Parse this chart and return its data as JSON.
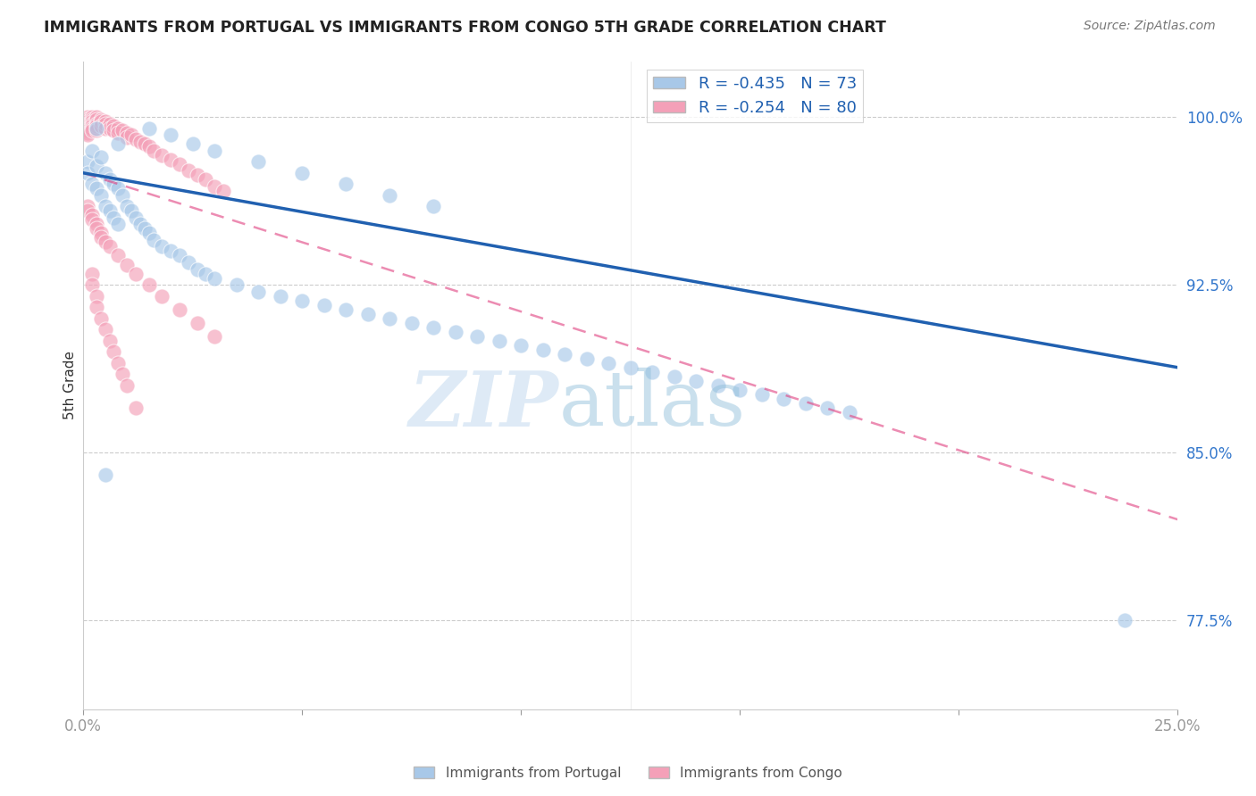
{
  "title": "IMMIGRANTS FROM PORTUGAL VS IMMIGRANTS FROM CONGO 5TH GRADE CORRELATION CHART",
  "source": "Source: ZipAtlas.com",
  "ylabel": "5th Grade",
  "legend_blue_label": "R = -0.435   N = 73",
  "legend_pink_label": "R = -0.254   N = 80",
  "legend_bottom_blue": "Immigrants from Portugal",
  "legend_bottom_pink": "Immigrants from Congo",
  "blue_color": "#a8c8e8",
  "pink_color": "#f4a0b8",
  "blue_line_color": "#2060b0",
  "pink_line_color": "#e04080",
  "xlim": [
    0.0,
    0.25
  ],
  "ylim": [
    0.735,
    1.025
  ],
  "yticks": [
    0.775,
    0.85,
    0.925,
    1.0
  ],
  "ytick_labels": [
    "77.5%",
    "85.0%",
    "92.5%",
    "100.0%"
  ],
  "xticks": [
    0.0,
    0.05,
    0.1,
    0.15,
    0.2,
    0.25
  ],
  "xtick_labels": [
    "0.0%",
    "",
    "",
    "",
    "",
    "25.0%"
  ],
  "blue_line_x0": 0.0,
  "blue_line_y0": 0.975,
  "blue_line_x1": 0.25,
  "blue_line_y1": 0.888,
  "pink_line_x0": 0.0,
  "pink_line_y0": 0.975,
  "pink_line_x1": 0.25,
  "pink_line_y1": 0.82,
  "portugal_x": [
    0.001,
    0.001,
    0.002,
    0.002,
    0.003,
    0.003,
    0.004,
    0.004,
    0.005,
    0.005,
    0.006,
    0.006,
    0.007,
    0.007,
    0.008,
    0.008,
    0.009,
    0.01,
    0.011,
    0.012,
    0.013,
    0.014,
    0.015,
    0.016,
    0.018,
    0.02,
    0.022,
    0.024,
    0.026,
    0.028,
    0.03,
    0.035,
    0.04,
    0.045,
    0.05,
    0.055,
    0.06,
    0.065,
    0.07,
    0.075,
    0.08,
    0.085,
    0.09,
    0.095,
    0.1,
    0.105,
    0.11,
    0.115,
    0.12,
    0.125,
    0.13,
    0.135,
    0.14,
    0.145,
    0.15,
    0.155,
    0.16,
    0.165,
    0.17,
    0.175,
    0.003,
    0.008,
    0.015,
    0.02,
    0.025,
    0.03,
    0.04,
    0.05,
    0.06,
    0.07,
    0.08,
    0.238,
    0.005
  ],
  "portugal_y": [
    0.98,
    0.975,
    0.985,
    0.97,
    0.978,
    0.968,
    0.982,
    0.965,
    0.975,
    0.96,
    0.972,
    0.958,
    0.97,
    0.955,
    0.968,
    0.952,
    0.965,
    0.96,
    0.958,
    0.955,
    0.952,
    0.95,
    0.948,
    0.945,
    0.942,
    0.94,
    0.938,
    0.935,
    0.932,
    0.93,
    0.928,
    0.925,
    0.922,
    0.92,
    0.918,
    0.916,
    0.914,
    0.912,
    0.91,
    0.908,
    0.906,
    0.904,
    0.902,
    0.9,
    0.898,
    0.896,
    0.894,
    0.892,
    0.89,
    0.888,
    0.886,
    0.884,
    0.882,
    0.88,
    0.878,
    0.876,
    0.874,
    0.872,
    0.87,
    0.868,
    0.995,
    0.988,
    0.995,
    0.992,
    0.988,
    0.985,
    0.98,
    0.975,
    0.97,
    0.965,
    0.96,
    0.775,
    0.84
  ],
  "congo_x": [
    0.001,
    0.001,
    0.001,
    0.001,
    0.001,
    0.001,
    0.001,
    0.001,
    0.001,
    0.002,
    0.002,
    0.002,
    0.002,
    0.002,
    0.002,
    0.002,
    0.003,
    0.003,
    0.003,
    0.003,
    0.003,
    0.004,
    0.004,
    0.004,
    0.005,
    0.005,
    0.005,
    0.006,
    0.006,
    0.007,
    0.007,
    0.008,
    0.008,
    0.009,
    0.01,
    0.01,
    0.011,
    0.012,
    0.013,
    0.014,
    0.015,
    0.016,
    0.018,
    0.02,
    0.022,
    0.024,
    0.026,
    0.028,
    0.03,
    0.032,
    0.001,
    0.001,
    0.002,
    0.002,
    0.003,
    0.003,
    0.004,
    0.004,
    0.005,
    0.006,
    0.008,
    0.01,
    0.012,
    0.015,
    0.018,
    0.022,
    0.026,
    0.03,
    0.002,
    0.002,
    0.003,
    0.003,
    0.004,
    0.005,
    0.006,
    0.007,
    0.008,
    0.009,
    0.01,
    0.012
  ],
  "congo_y": [
    1.0,
    0.999,
    0.998,
    0.997,
    0.996,
    0.995,
    0.994,
    0.993,
    0.992,
    1.0,
    0.999,
    0.998,
    0.997,
    0.996,
    0.995,
    0.994,
    1.0,
    0.999,
    0.997,
    0.996,
    0.994,
    0.999,
    0.998,
    0.996,
    0.998,
    0.997,
    0.995,
    0.997,
    0.995,
    0.996,
    0.994,
    0.995,
    0.993,
    0.994,
    0.993,
    0.991,
    0.992,
    0.99,
    0.989,
    0.988,
    0.987,
    0.985,
    0.983,
    0.981,
    0.979,
    0.976,
    0.974,
    0.972,
    0.969,
    0.967,
    0.96,
    0.958,
    0.956,
    0.954,
    0.952,
    0.95,
    0.948,
    0.946,
    0.944,
    0.942,
    0.938,
    0.934,
    0.93,
    0.925,
    0.92,
    0.914,
    0.908,
    0.902,
    0.93,
    0.925,
    0.92,
    0.915,
    0.91,
    0.905,
    0.9,
    0.895,
    0.89,
    0.885,
    0.88,
    0.87
  ]
}
